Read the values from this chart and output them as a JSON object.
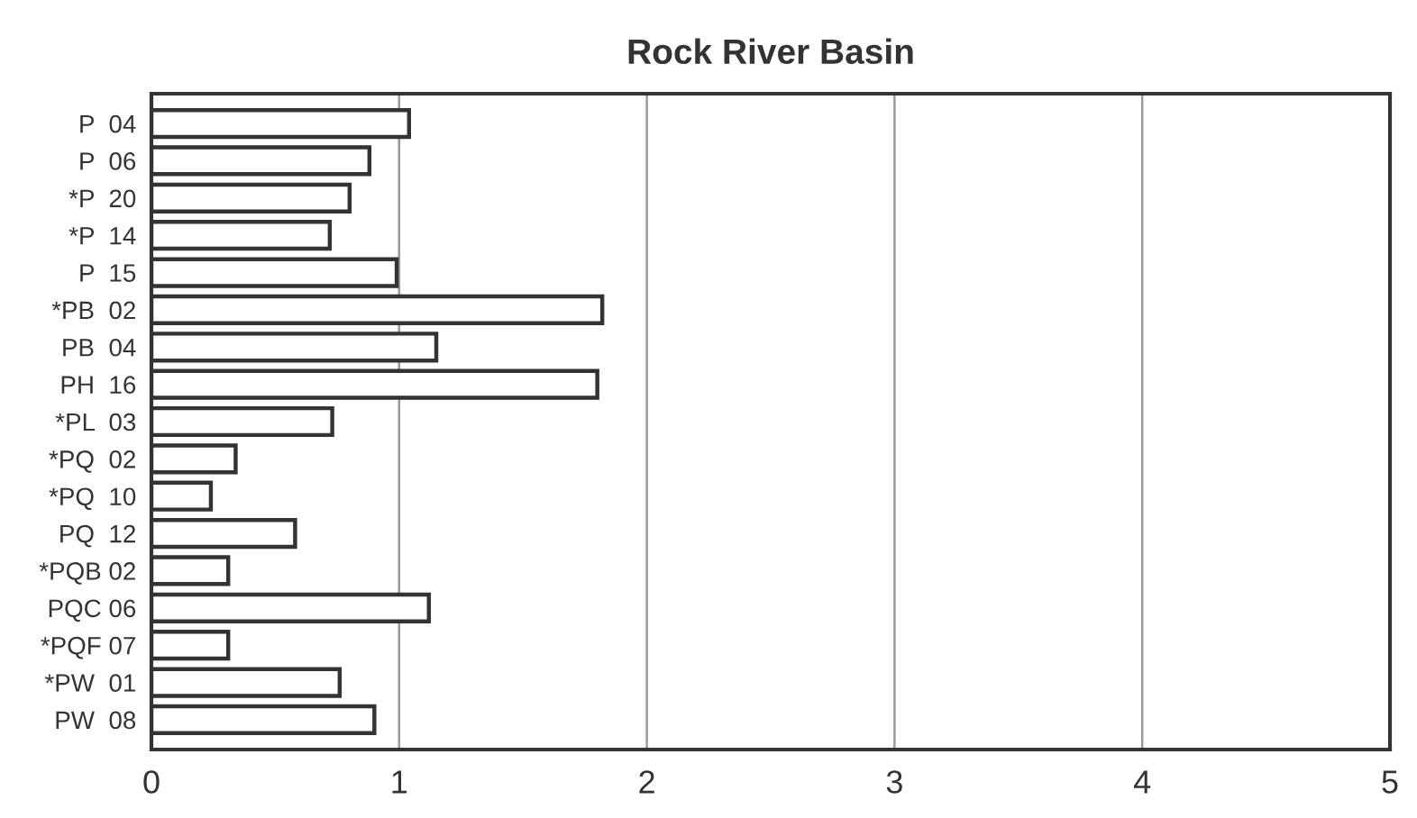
{
  "chart_data": {
    "type": "bar",
    "orientation": "horizontal",
    "title": "Rock River Basin",
    "categories": [
      "P  04",
      "P  06",
      "*P  20",
      "*P  14",
      "P  15",
      "*PB  02",
      "PB  04",
      "PH  16",
      "*PL  03",
      "*PQ  02",
      "*PQ  10",
      "PQ  12",
      "*PQB 02",
      "PQC 06",
      "*PQF 07",
      "*PW  01",
      "PW  08"
    ],
    "values": [
      1.04,
      0.88,
      0.8,
      0.72,
      0.99,
      1.82,
      1.15,
      1.8,
      0.73,
      0.34,
      0.24,
      0.58,
      0.31,
      1.12,
      0.31,
      0.76,
      0.9
    ],
    "color": "#ffffff",
    "xlim": [
      0,
      5
    ],
    "xticks": [
      0,
      1,
      2,
      3,
      4,
      5
    ],
    "grid": "x"
  }
}
